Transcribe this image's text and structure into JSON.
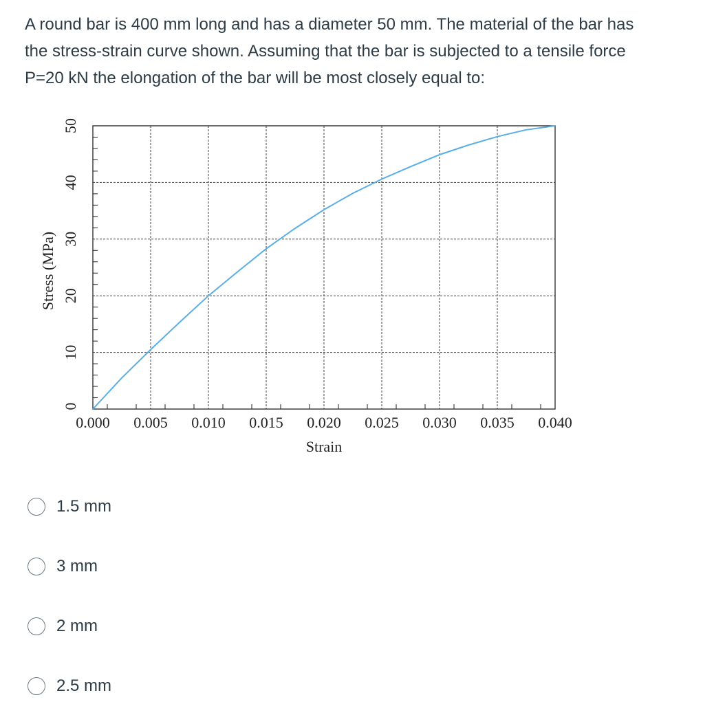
{
  "question": {
    "lines": [
      "A round bar is 400 mm long and has a diameter 50 mm.  The material of the bar has",
      "the stress-strain curve shown.  Assuming that the bar is subjected to a tensile force",
      "P=20 kN the elongation of the bar will be most closely equal to:"
    ]
  },
  "chart_data": {
    "type": "line",
    "xlabel": "Strain",
    "ylabel": "Stress (MPa)",
    "xlim": [
      0,
      0.04
    ],
    "ylim": [
      0,
      50
    ],
    "x_ticks": [
      "0.000",
      "0.005",
      "0.010",
      "0.015",
      "0.020",
      "0.025",
      "0.030",
      "0.035",
      "0.040"
    ],
    "y_ticks": [
      "0",
      "10",
      "20",
      "30",
      "40",
      "50"
    ],
    "grid": true,
    "series": [
      {
        "color": "#5aaee3",
        "x": [
          0,
          0.0025,
          0.005,
          0.0075,
          0.01,
          0.0125,
          0.015,
          0.0175,
          0.02,
          0.0225,
          0.025,
          0.0275,
          0.03,
          0.0325,
          0.035,
          0.0375,
          0.04
        ],
        "y": [
          0,
          5.5,
          10.5,
          15.3,
          20,
          24.2,
          28.3,
          31.9,
          35.2,
          38.1,
          40.6,
          42.8,
          44.9,
          46.6,
          48.1,
          49.3,
          50
        ]
      }
    ]
  },
  "options": [
    {
      "label": "1.5 mm"
    },
    {
      "label": "3 mm"
    },
    {
      "label": "2 mm"
    },
    {
      "label": "2.5 mm"
    }
  ]
}
